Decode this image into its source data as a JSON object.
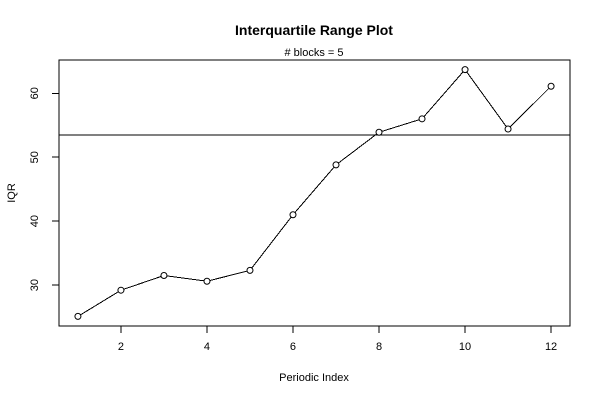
{
  "chart_data": {
    "type": "line",
    "title": "Interquartile Range Plot",
    "subtitle": "# blocks =  5",
    "xlabel": "Periodic Index",
    "ylabel": "IQR",
    "x": [
      1,
      2,
      3,
      4,
      5,
      6,
      7,
      8,
      9,
      10,
      11,
      12
    ],
    "values": [
      25.1,
      29.2,
      31.5,
      30.6,
      32.3,
      41.0,
      48.8,
      53.9,
      56.0,
      63.7,
      54.4,
      61.1
    ],
    "xlim": [
      0.56,
      12.44
    ],
    "ylim": [
      23.6,
      65.2
    ],
    "x_ticks": [
      2,
      4,
      6,
      8,
      10,
      12
    ],
    "x_tick_labels": [
      "2",
      "4",
      "6",
      "8",
      "10",
      "12"
    ],
    "y_ticks": [
      30,
      40,
      50,
      60
    ],
    "y_tick_labels": [
      "30",
      "40",
      "50",
      "60"
    ],
    "reference_line_y": 53.5,
    "grid": false,
    "legend": "none",
    "colors": {
      "line": "#000000",
      "marker_fill": "#ffffff",
      "marker_stroke": "#000000",
      "background": "#ffffff"
    }
  }
}
